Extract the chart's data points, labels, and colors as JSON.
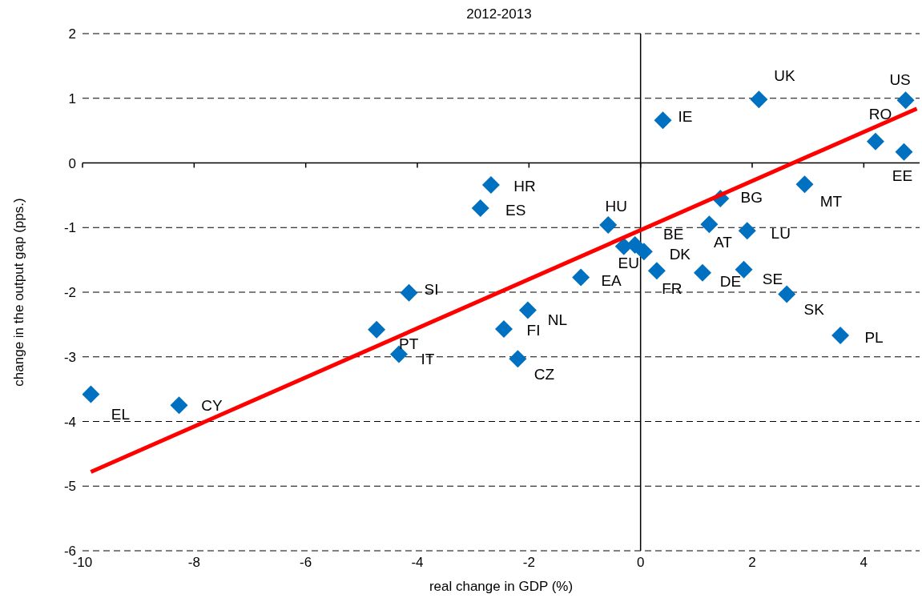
{
  "chart_data": {
    "type": "scatter",
    "title": "2012-2013",
    "xlabel": "real change in GDP (%)",
    "ylabel": "change in the output gap (pps.)",
    "xlim": [
      -10,
      5
    ],
    "xticks": [
      -10,
      -8,
      -6,
      -4,
      -2,
      0,
      2,
      4
    ],
    "ylim": [
      -6,
      2
    ],
    "yticks": [
      -6,
      -5,
      -4,
      -3,
      -2,
      -1,
      0,
      1,
      2
    ],
    "grid": "y",
    "legend": false,
    "ref_lines": [
      {
        "axis": "x",
        "value": 0,
        "color": "#000000"
      }
    ],
    "series": [
      {
        "type": "scatter",
        "color": "#0070c0",
        "marker": "diamond",
        "x": [
          -9.85,
          -8.27,
          -4.73,
          -4.33,
          -4.15,
          -2.87,
          -2.68,
          -2.45,
          -2.2,
          -2.02,
          -1.07,
          -0.58,
          -0.3,
          -0.1,
          0.06,
          0.29,
          0.4,
          1.11,
          1.23,
          1.43,
          1.91,
          1.85,
          2.12,
          2.62,
          2.94,
          3.58,
          4.21,
          4.72,
          4.75
        ],
        "values": [
          -3.58,
          -3.75,
          -2.58,
          -2.96,
          -2.01,
          -0.7,
          -0.34,
          -2.57,
          -3.03,
          -2.28,
          -1.77,
          -0.96,
          -1.29,
          -1.27,
          -1.37,
          -1.67,
          0.66,
          -1.7,
          -0.95,
          -0.55,
          -1.05,
          -1.65,
          0.98,
          -2.03,
          -0.33,
          -2.67,
          0.33,
          0.17,
          0.97
        ]
      },
      {
        "type": "line",
        "color": "#ff0000",
        "marker": "none",
        "line_style": "solid",
        "x": [
          -9.85,
          4.95
        ],
        "values": [
          -4.78,
          0.84
        ]
      }
    ],
    "annotations": [
      {
        "text": "EL",
        "x": -9.85,
        "y": -3.58
      },
      {
        "text": "CY",
        "x": -8.27,
        "y": -3.75
      },
      {
        "text": "PT",
        "x": -4.73,
        "y": -2.58
      },
      {
        "text": "IT",
        "x": -4.33,
        "y": -2.96
      },
      {
        "text": "SI",
        "x": -4.15,
        "y": -2.01
      },
      {
        "text": "ES",
        "x": -2.87,
        "y": -0.7
      },
      {
        "text": "HR",
        "x": -2.68,
        "y": -0.34
      },
      {
        "text": "FI",
        "x": -2.45,
        "y": -2.57
      },
      {
        "text": "CZ",
        "x": -2.2,
        "y": -3.03
      },
      {
        "text": "NL",
        "x": -2.02,
        "y": -2.28
      },
      {
        "text": "EA",
        "x": -1.07,
        "y": -1.77
      },
      {
        "text": "HU",
        "x": -0.58,
        "y": -0.96
      },
      {
        "text": "EU",
        "x": -0.3,
        "y": -1.29
      },
      {
        "text": "BE",
        "x": -0.1,
        "y": -1.27
      },
      {
        "text": "DK",
        "x": 0.06,
        "y": -1.37
      },
      {
        "text": "FR",
        "x": 0.29,
        "y": -1.67
      },
      {
        "text": "IE",
        "x": 0.4,
        "y": 0.66
      },
      {
        "text": "DE",
        "x": 1.11,
        "y": -1.7
      },
      {
        "text": "AT",
        "x": 1.23,
        "y": -0.95
      },
      {
        "text": "BG",
        "x": 1.43,
        "y": -0.55
      },
      {
        "text": "LU",
        "x": 1.91,
        "y": -1.05
      },
      {
        "text": "SE",
        "x": 1.85,
        "y": -1.65
      },
      {
        "text": "UK",
        "x": 2.12,
        "y": 0.98
      },
      {
        "text": "SK",
        "x": 2.62,
        "y": -2.03
      },
      {
        "text": "MT",
        "x": 2.94,
        "y": -0.33
      },
      {
        "text": "PL",
        "x": 3.58,
        "y": -2.67
      },
      {
        "text": "RO",
        "x": 4.21,
        "y": 0.33
      },
      {
        "text": "EE",
        "x": 4.72,
        "y": 0.17
      },
      {
        "text": "US",
        "x": 4.75,
        "y": 0.97
      }
    ]
  }
}
